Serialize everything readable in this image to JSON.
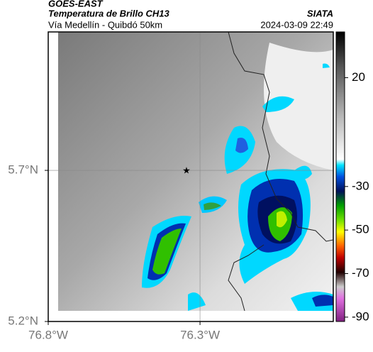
{
  "header": {
    "source": "GOES-EAST",
    "product": "Temperatura de Brillo CH13",
    "org": "SIATA",
    "subtitle": "Vía Medellín - Quibdó 50km",
    "timestamp": "2024-03-09 22:49"
  },
  "map": {
    "lonlim": [
      -76.8,
      -75.861
    ],
    "latlim": [
      5.2,
      6.158
    ],
    "lonticks": [
      {
        "value": -76.8,
        "label": "76.8°W"
      },
      {
        "value": -76.3,
        "label": "76.3°W"
      }
    ],
    "latticks": [
      {
        "value": 5.2,
        "label": "5.2°N"
      },
      {
        "value": 5.7,
        "label": "5.7°N"
      }
    ],
    "grid": true
  },
  "colorbar": {
    "lim": [
      -92,
      41
    ],
    "ticks": [
      20,
      -30,
      -50,
      -70,
      -90
    ]
  }
}
